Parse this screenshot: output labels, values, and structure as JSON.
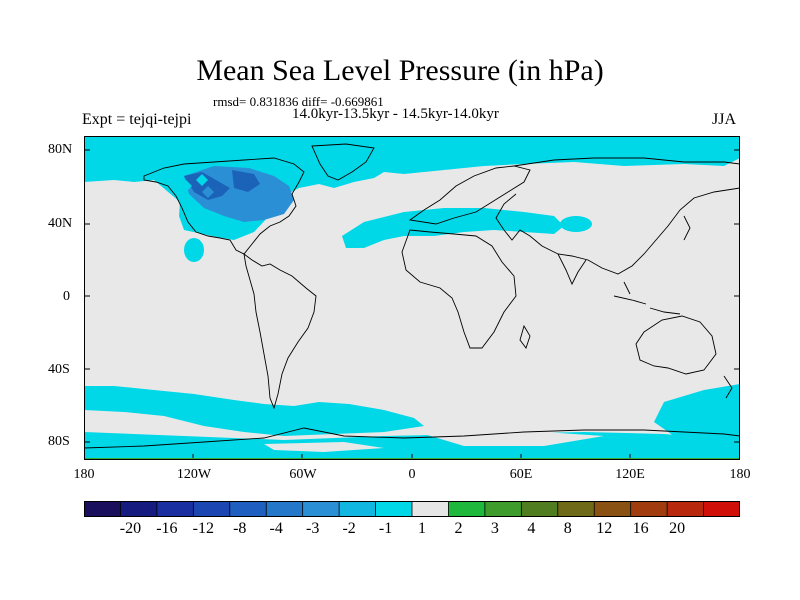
{
  "title": "Mean Sea Level Pressure (in hPa)",
  "stats_line": "rmsd= 0.831836 diff= -0.669861",
  "period_line": "14.0kyr-13.5kyr - 14.5kyr-14.0kyr",
  "expt_label": "Expt = tejqi-tejpi",
  "season": "JJA",
  "y_ticks": [
    "80N",
    "40N",
    "0",
    "40S",
    "80S"
  ],
  "x_ticks": [
    "180",
    "120W",
    "60W",
    "0",
    "60E",
    "120E",
    "180"
  ],
  "colors": {
    "background_field": "#e8e8e8",
    "cyan_negative": "#00d8e8",
    "mid_blue": "#2b8fd6",
    "dark_blue": "#1b63b8",
    "coast": "#000000"
  },
  "colorbar": {
    "colors": [
      "#1a0f5c",
      "#161b80",
      "#1a2fa0",
      "#1c47b3",
      "#1e5fc0",
      "#2477c9",
      "#2b8fd6",
      "#12b7e1",
      "#00d8e8",
      "#e6e6e6",
      "#1eb83c",
      "#3e9c2c",
      "#4f7d20",
      "#6f6a18",
      "#8a5212",
      "#a03c0e",
      "#b8280c",
      "#d01008"
    ],
    "labels": [
      "-20",
      "-16",
      "-12",
      "-8",
      "-4",
      "-3",
      "-2",
      "-1",
      "1",
      "2",
      "3",
      "4",
      "8",
      "12",
      "16",
      "20"
    ]
  }
}
